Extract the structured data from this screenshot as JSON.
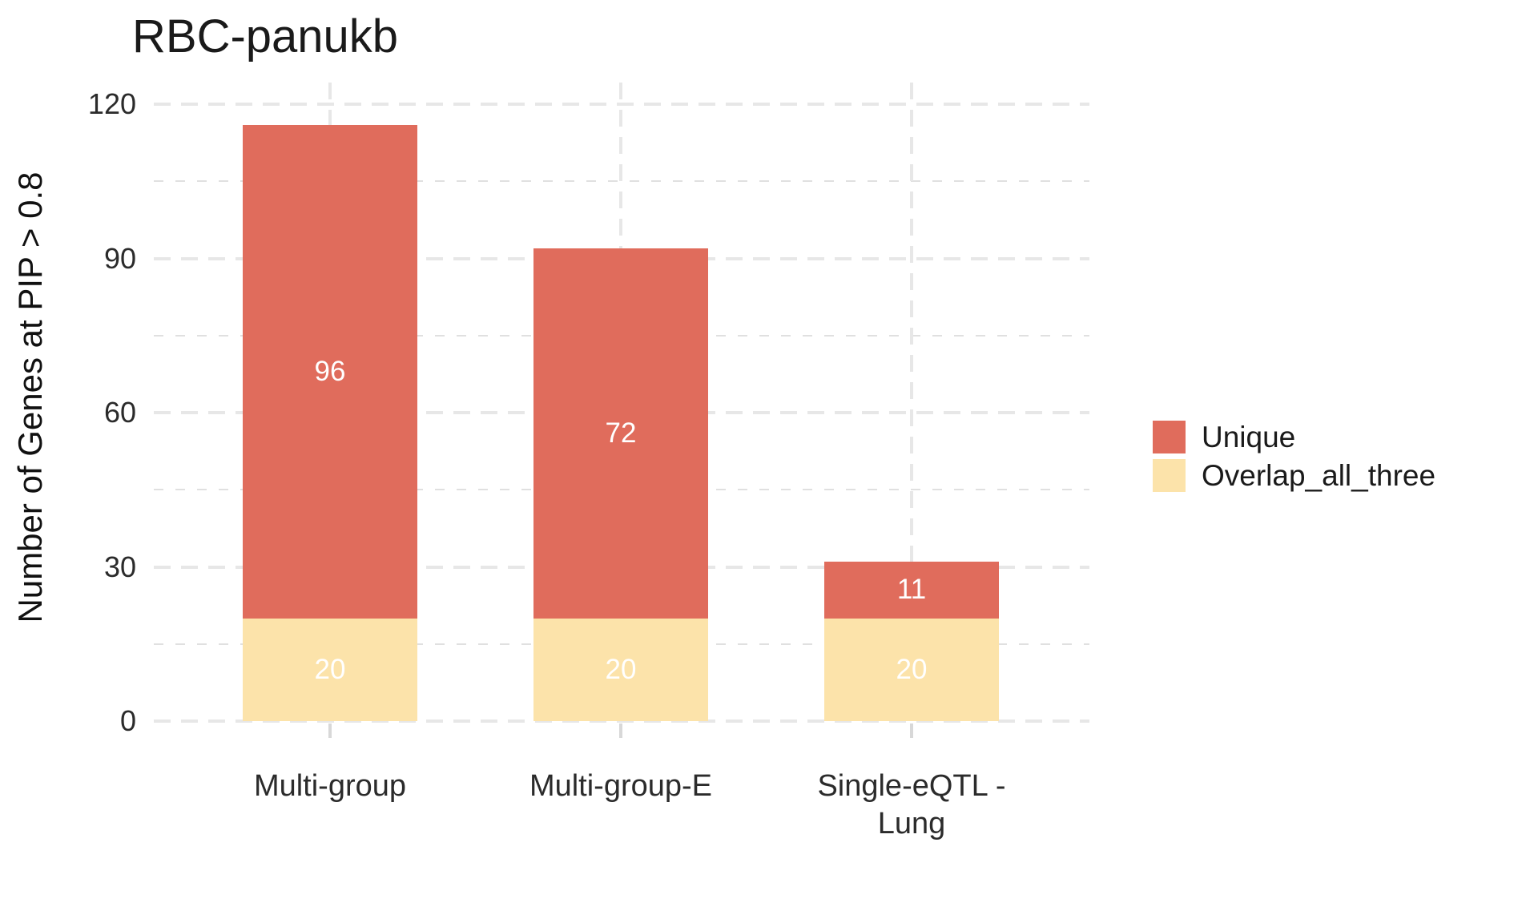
{
  "chart_data": {
    "type": "bar",
    "stacked": true,
    "title": "RBC-panukb",
    "xlabel": "",
    "ylabel": "Number of Genes at PIP > 0.8",
    "categories": [
      "Multi-group",
      "Multi-group-E",
      "Single-eQTL -\nLung"
    ],
    "series": [
      {
        "name": "Overlap_all_three",
        "color": "#FCE3AA",
        "values": [
          20,
          20,
          20
        ]
      },
      {
        "name": "Unique",
        "color": "#E06C5C",
        "values": [
          96,
          72,
          11
        ]
      }
    ],
    "stack_totals": [
      116,
      92,
      31
    ],
    "bar_label_color": "#FFFFFF",
    "yticks": [
      0,
      30,
      60,
      90,
      120
    ],
    "ylim": [
      0,
      120
    ],
    "grid": "dashed-major-and-minor",
    "legend_position": "right",
    "legend_order": [
      "Unique",
      "Overlap_all_three"
    ]
  }
}
